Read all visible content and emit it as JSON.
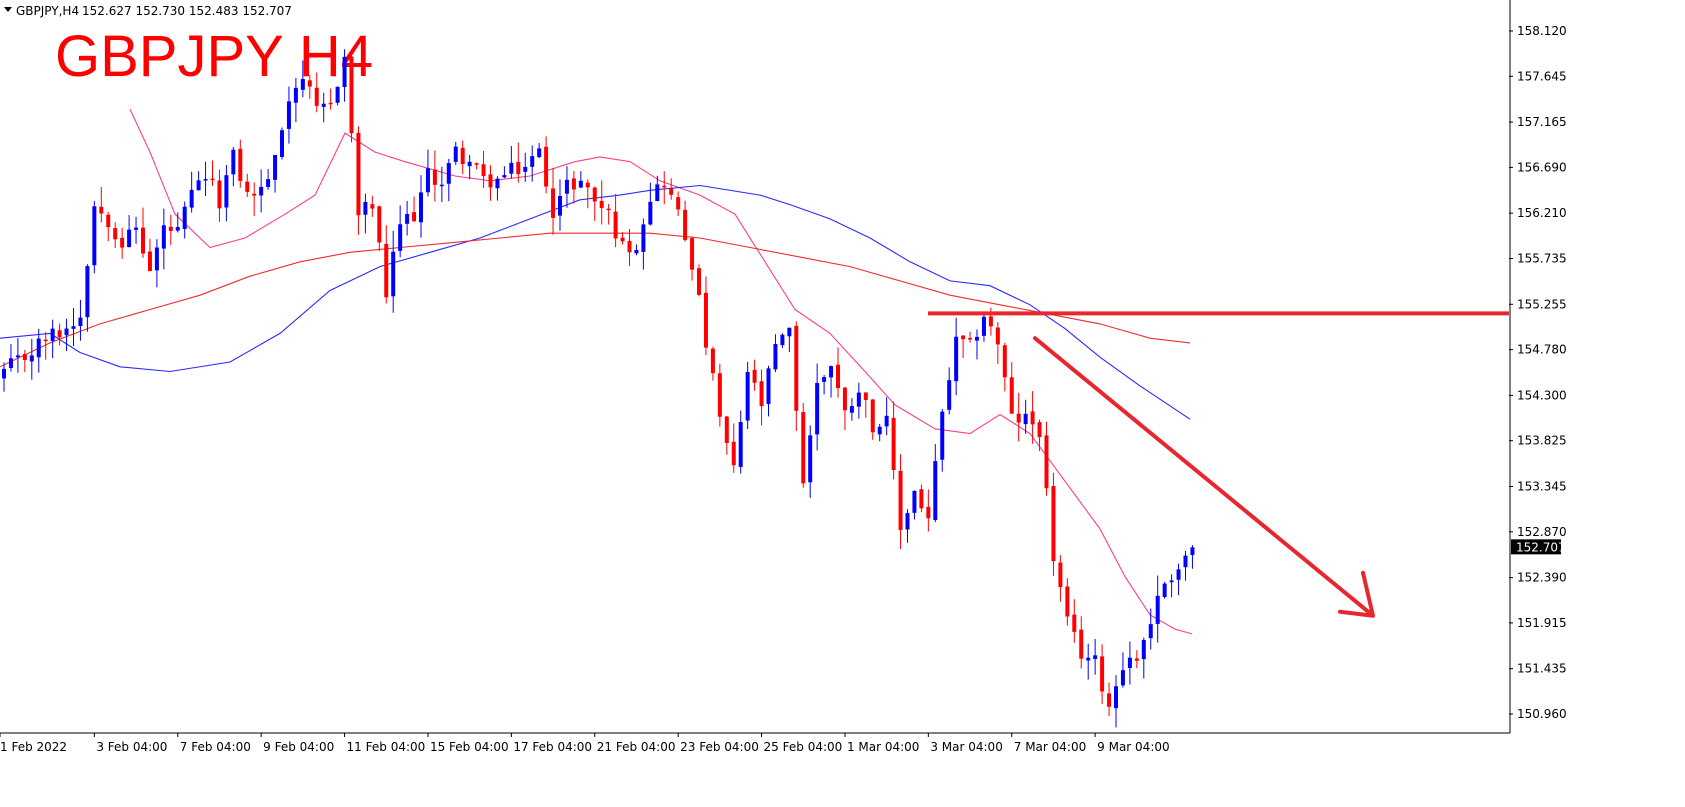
{
  "header": {
    "symbol_info": "GBPJPY,H4",
    "ohlc": "152.627 152.730 152.483 152.707",
    "big_title": "GBPJPY H4"
  },
  "colors": {
    "bull": "#0000ff",
    "bear": "#ff0000",
    "ma_fast": "#ff3d8b",
    "ma_mid": "#2a2aff",
    "ma_slow": "#f22b2b",
    "annotation": "#e8262f",
    "text": "#000000",
    "frame": "#000000"
  },
  "chart_data": {
    "type": "candlestick",
    "symbol": "GBPJPY",
    "timeframe": "H4",
    "ylim": [
      150.78,
      158.3
    ],
    "y_ticks": [
      "158.120",
      "157.645",
      "157.165",
      "156.690",
      "156.210",
      "155.735",
      "155.255",
      "154.780",
      "154.300",
      "153.825",
      "153.345",
      "152.870",
      "152.390",
      "151.915",
      "151.435",
      "150.960"
    ],
    "current_price": "152.707",
    "x_labels": [
      {
        "label": "1 Feb 2022",
        "index": 0
      },
      {
        "label": "3 Feb 04:00",
        "index": 13
      },
      {
        "label": "7 Feb 04:00",
        "index": 25
      },
      {
        "label": "9 Feb 04:00",
        "index": 37
      },
      {
        "label": "11 Feb 04:00",
        "index": 49
      },
      {
        "label": "15 Feb 04:00",
        "index": 61
      },
      {
        "label": "17 Feb 04:00",
        "index": 73
      },
      {
        "label": "21 Feb 04:00",
        "index": 85
      },
      {
        "label": "23 Feb 04:00",
        "index": 97
      },
      {
        "label": "25 Feb 04:00",
        "index": 109
      },
      {
        "label": "1 Mar 04:00",
        "index": 121
      },
      {
        "label": "3 Mar 04:00",
        "index": 133
      },
      {
        "label": "7 Mar 04:00",
        "index": 145
      },
      {
        "label": "9 Mar 04:00",
        "index": 157
      }
    ],
    "anchor_closes": [
      [
        0,
        154.55
      ],
      [
        3,
        154.7
      ],
      [
        6,
        154.9
      ],
      [
        9,
        155.0
      ],
      [
        11,
        155.15
      ],
      [
        13,
        156.3
      ],
      [
        15,
        156.15
      ],
      [
        17,
        155.9
      ],
      [
        19,
        156.05
      ],
      [
        21,
        155.6
      ],
      [
        23,
        156.05
      ],
      [
        25,
        156.0
      ],
      [
        27,
        156.4
      ],
      [
        29,
        156.6
      ],
      [
        31,
        156.35
      ],
      [
        33,
        156.8
      ],
      [
        35,
        156.4
      ],
      [
        37,
        156.45
      ],
      [
        39,
        156.75
      ],
      [
        41,
        157.45
      ],
      [
        43,
        157.65
      ],
      [
        45,
        157.25
      ],
      [
        47,
        157.35
      ],
      [
        49,
        157.85
      ],
      [
        51,
        156.2
      ],
      [
        53,
        156.3
      ],
      [
        55,
        155.35
      ],
      [
        57,
        156.1
      ],
      [
        59,
        156.2
      ],
      [
        61,
        156.6
      ],
      [
        63,
        156.55
      ],
      [
        65,
        156.85
      ],
      [
        67,
        156.75
      ],
      [
        69,
        156.55
      ],
      [
        71,
        156.55
      ],
      [
        73,
        156.65
      ],
      [
        75,
        156.7
      ],
      [
        77,
        156.85
      ],
      [
        79,
        156.25
      ],
      [
        81,
        156.5
      ],
      [
        83,
        156.55
      ],
      [
        85,
        156.35
      ],
      [
        87,
        156.2
      ],
      [
        89,
        155.85
      ],
      [
        91,
        155.9
      ],
      [
        93,
        156.4
      ],
      [
        95,
        156.55
      ],
      [
        97,
        156.2
      ],
      [
        99,
        155.7
      ],
      [
        101,
        154.85
      ],
      [
        103,
        154.05
      ],
      [
        105,
        153.5
      ],
      [
        107,
        154.55
      ],
      [
        109,
        154.2
      ],
      [
        111,
        154.8
      ],
      [
        113,
        154.95
      ],
      [
        115,
        153.4
      ],
      [
        117,
        154.4
      ],
      [
        119,
        154.65
      ],
      [
        121,
        154.1
      ],
      [
        123,
        154.4
      ],
      [
        125,
        154.0
      ],
      [
        127,
        154.0
      ],
      [
        129,
        152.9
      ],
      [
        131,
        153.3
      ],
      [
        133,
        153.0
      ],
      [
        135,
        154.1
      ],
      [
        137,
        154.85
      ],
      [
        139,
        154.8
      ],
      [
        141,
        155.15
      ],
      [
        143,
        154.85
      ],
      [
        145,
        154.05
      ],
      [
        147,
        154.05
      ],
      [
        149,
        153.95
      ],
      [
        151,
        152.6
      ],
      [
        153,
        151.9
      ],
      [
        155,
        151.6
      ],
      [
        157,
        151.5
      ],
      [
        159,
        151.05
      ],
      [
        161,
        151.5
      ],
      [
        163,
        151.55
      ],
      [
        165,
        151.95
      ],
      [
        167,
        152.35
      ],
      [
        169,
        152.5
      ],
      [
        171,
        152.707
      ]
    ],
    "moving_averages": [
      {
        "color": "#ff3d8b",
        "points": [
          [
            130,
            157.3
          ],
          [
            150,
            156.85
          ],
          [
            175,
            156.2
          ],
          [
            210,
            155.85
          ],
          [
            245,
            155.95
          ],
          [
            285,
            156.2
          ],
          [
            315,
            156.4
          ],
          [
            345,
            157.05
          ],
          [
            375,
            156.85
          ],
          [
            405,
            156.75
          ],
          [
            455,
            156.6
          ],
          [
            490,
            156.55
          ],
          [
            530,
            156.6
          ],
          [
            575,
            156.75
          ],
          [
            600,
            156.8
          ],
          [
            630,
            156.75
          ],
          [
            660,
            156.55
          ],
          [
            700,
            156.4
          ],
          [
            735,
            156.2
          ],
          [
            765,
            155.7
          ],
          [
            795,
            155.2
          ],
          [
            830,
            154.95
          ],
          [
            865,
            154.55
          ],
          [
            895,
            154.2
          ],
          [
            935,
            153.95
          ],
          [
            970,
            153.9
          ],
          [
            1000,
            154.1
          ],
          [
            1030,
            153.9
          ],
          [
            1065,
            153.4
          ],
          [
            1100,
            152.9
          ],
          [
            1125,
            152.4
          ],
          [
            1150,
            152.0
          ],
          [
            1175,
            151.85
          ],
          [
            1192,
            151.8
          ]
        ]
      },
      {
        "color": "#2a2aff",
        "points": [
          [
            0,
            154.9
          ],
          [
            50,
            154.95
          ],
          [
            80,
            154.75
          ],
          [
            120,
            154.6
          ],
          [
            170,
            154.55
          ],
          [
            230,
            154.65
          ],
          [
            280,
            154.95
          ],
          [
            330,
            155.4
          ],
          [
            380,
            155.65
          ],
          [
            430,
            155.8
          ],
          [
            480,
            155.95
          ],
          [
            530,
            156.15
          ],
          [
            580,
            156.35
          ],
          [
            620,
            156.4
          ],
          [
            650,
            156.45
          ],
          [
            700,
            156.5
          ],
          [
            760,
            156.4
          ],
          [
            790,
            156.3
          ],
          [
            830,
            156.15
          ],
          [
            870,
            155.95
          ],
          [
            910,
            155.7
          ],
          [
            950,
            155.5
          ],
          [
            990,
            155.45
          ],
          [
            1030,
            155.25
          ],
          [
            1065,
            155.0
          ],
          [
            1100,
            154.7
          ],
          [
            1140,
            154.4
          ],
          [
            1190,
            154.05
          ]
        ]
      },
      {
        "color": "#f22b2b",
        "points": [
          [
            0,
            154.6
          ],
          [
            50,
            154.85
          ],
          [
            100,
            155.05
          ],
          [
            150,
            155.2
          ],
          [
            200,
            155.35
          ],
          [
            250,
            155.55
          ],
          [
            300,
            155.7
          ],
          [
            350,
            155.8
          ],
          [
            400,
            155.85
          ],
          [
            450,
            155.9
          ],
          [
            500,
            155.95
          ],
          [
            550,
            156.0
          ],
          [
            600,
            156.0
          ],
          [
            650,
            156.0
          ],
          [
            700,
            155.95
          ],
          [
            750,
            155.85
          ],
          [
            800,
            155.75
          ],
          [
            850,
            155.65
          ],
          [
            900,
            155.5
          ],
          [
            950,
            155.35
          ],
          [
            1000,
            155.25
          ],
          [
            1050,
            155.15
          ],
          [
            1100,
            155.05
          ],
          [
            1150,
            154.9
          ],
          [
            1190,
            154.85
          ]
        ]
      }
    ],
    "annotations": {
      "resistance_level": 155.16,
      "resistance_x": [
        928,
        1509
      ],
      "arrow_x": [
        1035,
        1372
      ],
      "arrow_price": [
        154.9,
        152.0
      ]
    }
  }
}
